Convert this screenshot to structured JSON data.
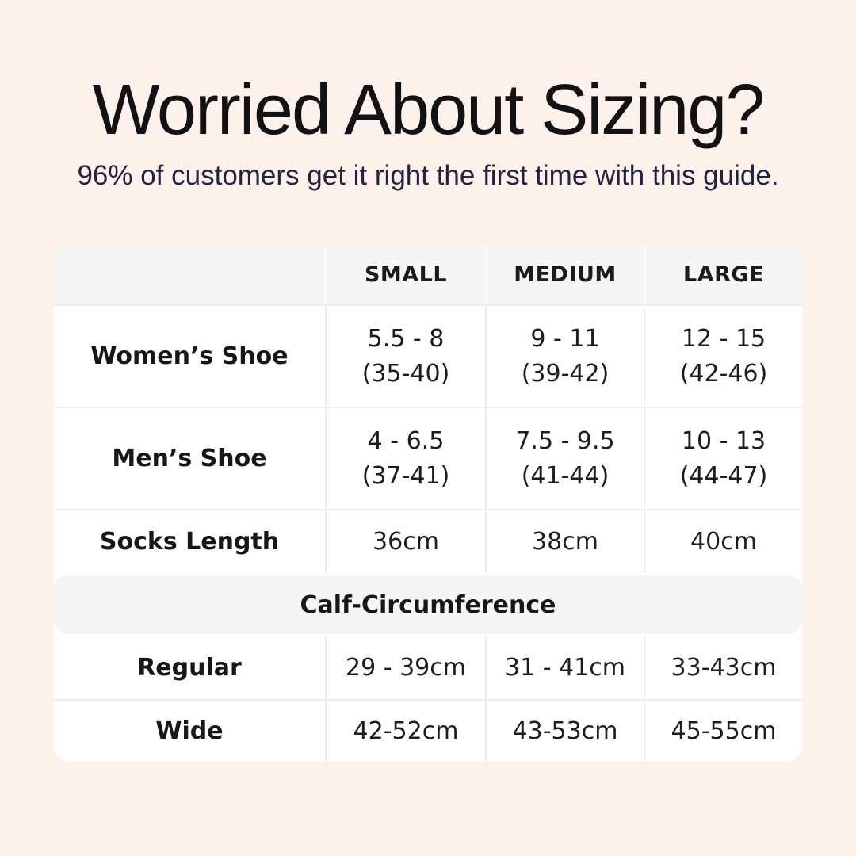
{
  "header": {
    "title": "Worried About Sizing?",
    "subtitle": "96% of customers get it right the first time with this guide."
  },
  "table": {
    "col_headers": {
      "empty": "",
      "small": "SMALL",
      "medium": "MEDIUM",
      "large": "LARGE"
    },
    "rows": {
      "womens": {
        "label": "Women’s Shoe",
        "small1": "5.5 - 8",
        "small2": "(35-40)",
        "medium1": "9 - 11",
        "medium2": "(39-42)",
        "large1": "12 - 15",
        "large2": "(42-46)"
      },
      "mens": {
        "label": "Men’s Shoe",
        "small1": "4 - 6.5",
        "small2": "(37-41)",
        "medium1": "7.5 - 9.5",
        "medium2": "(41-44)",
        "large1": "10 - 13",
        "large2": "(44-47)"
      },
      "socks": {
        "label": "Socks Length",
        "small": "36cm",
        "medium": "38cm",
        "large": "40cm"
      }
    },
    "section_title": "Calf-Circumference",
    "calf_rows": {
      "regular": {
        "label": "Regular",
        "small": "29 - 39cm",
        "medium": "31 - 41cm",
        "large": "33-43cm"
      },
      "wide": {
        "label": "Wide",
        "small": "42-52cm",
        "medium": "43-53cm",
        "large": "45-55cm"
      }
    }
  },
  "colors": {
    "background": "#fcf2eb",
    "table_background": "#ffffff",
    "band_background": "#f5f5f6",
    "divider": "#ededf0",
    "title_text": "#121215",
    "subtitle_text": "#23233f",
    "table_text": "#1b1b1f"
  },
  "chart_data": {
    "type": "table",
    "title": "Worried About Sizing?",
    "subtitle": "96% of customers get it right the first time with this guide.",
    "columns": [
      "",
      "SMALL",
      "MEDIUM",
      "LARGE"
    ],
    "rows": [
      [
        "Women’s Shoe",
        "5.5 - 8 (35-40)",
        "9 - 11 (39-42)",
        "12 - 15 (42-46)"
      ],
      [
        "Men’s Shoe",
        "4 - 6.5 (37-41)",
        "7.5 - 9.5 (41-44)",
        "10 - 13 (44-47)"
      ],
      [
        "Socks Length",
        "36cm",
        "38cm",
        "40cm"
      ],
      [
        "Calf-Circumference",
        "",
        "",
        ""
      ],
      [
        "Regular",
        "29 - 39cm",
        "31 - 41cm",
        "33-43cm"
      ],
      [
        "Wide",
        "42-52cm",
        "43-53cm",
        "45-55cm"
      ]
    ],
    "section_row_index": 3,
    "layout": {
      "section_band_full_width": true,
      "header_background": "#f5f5f6"
    }
  }
}
